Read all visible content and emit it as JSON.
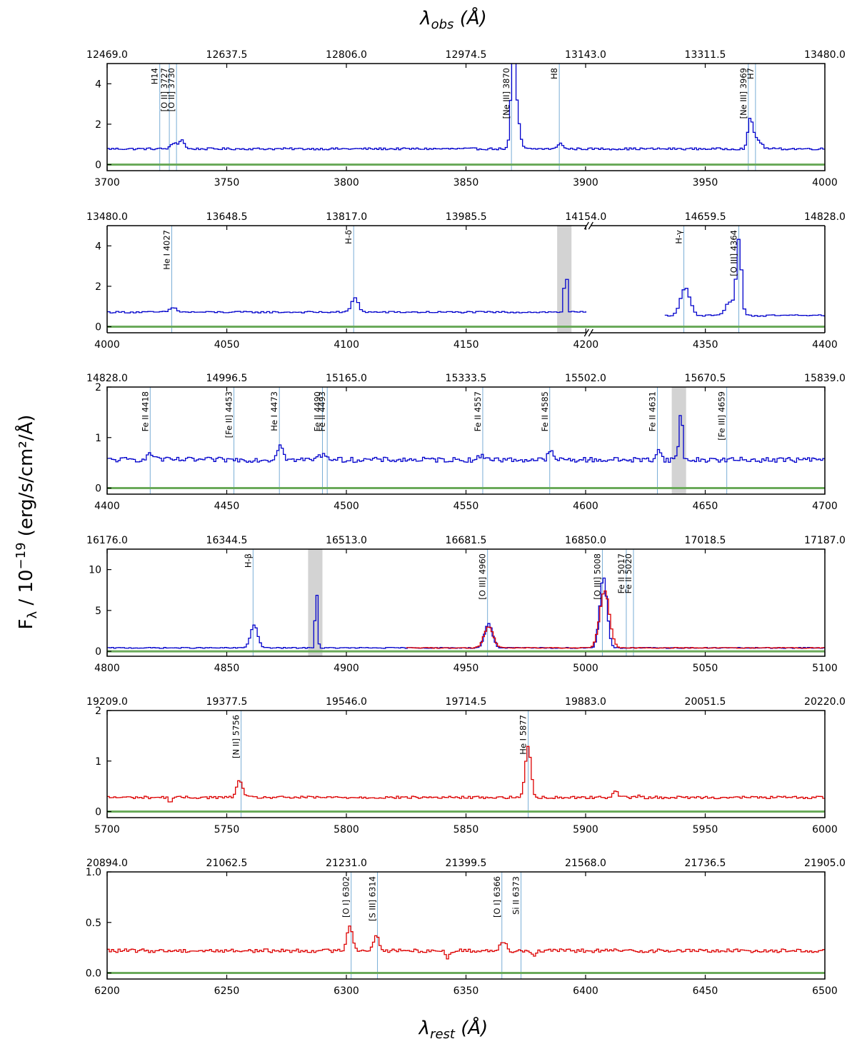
{
  "figure": {
    "top_xlabel": "λ_obs (Å)",
    "bottom_xlabel": "λ_rest (Å)",
    "ylabel": "F_λ / 10^−19 (erg/s/cm²/Å)",
    "colors": {
      "nirspec_g235": "#0000cc",
      "nirspec_g395": "#dd0000",
      "error": "#6aaa5a",
      "line_marker": "#7aaed6",
      "masked": "#d3d3d3"
    }
  },
  "chart_data": [
    {
      "type": "line",
      "xlim": [
        3700,
        4000
      ],
      "ylim": [
        -0.3,
        5.0
      ],
      "yticks": [
        0,
        2,
        4
      ],
      "xticks": [
        3700,
        3750,
        3800,
        3850,
        3900,
        3950,
        4000
      ],
      "top_ticks": [
        "12469.0",
        "12637.5",
        "12806.0",
        "12974.5",
        "13143.0",
        "13311.5",
        "13480.0"
      ],
      "lines": [
        {
          "label": "H14",
          "x": 3722
        },
        {
          "label": "[O II] 3727",
          "x": 3726
        },
        {
          "label": "[O II] 3730",
          "x": 3729
        },
        {
          "label": "[Ne III] 3870",
          "x": 3869
        },
        {
          "label": "H8",
          "x": 3889
        },
        {
          "label": "[Ne III] 3969",
          "x": 3968
        },
        {
          "label": "H7",
          "x": 3971
        }
      ],
      "masked": [],
      "series": [
        {
          "name": "",
          "color": "blue",
          "x_range": [
            3700,
            4000
          ],
          "continuum": 0.78,
          "noise": 0.05,
          "peaks": [
            [
              3728,
              0.3,
              1.5
            ],
            [
              3731,
              0.42,
              0.9
            ],
            [
              3869.2,
              4.2,
              0.9
            ],
            [
              3870.8,
              1.7,
              1.2
            ],
            [
              3889,
              0.32,
              0.9
            ],
            [
              3968.4,
              1.35,
              1.0
            ],
            [
              3971,
              0.5,
              1.8
            ]
          ]
        }
      ],
      "error": {
        "x_range": [
          3700,
          4000
        ],
        "value": 0.0
      }
    },
    {
      "type": "line",
      "xlim": [
        4000,
        4400
      ],
      "ylim": [
        -0.3,
        5.0
      ],
      "yticks": [
        0,
        2,
        4
      ],
      "xticks": [
        4000,
        4050,
        4100,
        4150,
        4200,
        4350,
        4400
      ],
      "xtick_pos": [
        4000,
        4050,
        4100,
        4150,
        4200,
        4350,
        4400
      ],
      "top_ticks": [
        "13480.0",
        "13648.5",
        "13817.0",
        "13985.5",
        "14154.0",
        "14659.5",
        "14828.0"
      ],
      "break_at": 4200,
      "lines": [
        {
          "label": "He I 4027",
          "x": 4027
        },
        {
          "label": "H-δ",
          "x": 4103
        },
        {
          "label": "H-γ",
          "x": 4341
        },
        {
          "label": "[O III] 4364",
          "x": 4364
        }
      ],
      "masked": [
        [
          4188,
          4194
        ]
      ],
      "series": [
        {
          "name": "",
          "color": "blue",
          "x_range": [
            4000,
            4200
          ],
          "continuum": 0.72,
          "noise": 0.04,
          "peaks": [
            [
              4027,
              0.22,
              1.5
            ],
            [
              4103,
              0.72,
              1.4
            ],
            [
              4191,
              2.35,
              0.6
            ]
          ]
        },
        {
          "name": "",
          "color": "blue",
          "x_range": [
            4333,
            4400
          ],
          "continuum": 0.55,
          "noise": 0.04,
          "peaks": [
            [
              4341,
              1.35,
              2.0
            ],
            [
              4363.5,
              3.7,
              1.0
            ],
            [
              4360,
              0.7,
              2.0
            ]
          ]
        }
      ],
      "error": {
        "x_range": [
          4000,
          4400
        ],
        "value": 0.0
      }
    },
    {
      "type": "line",
      "xlim": [
        4400,
        4700
      ],
      "ylim": [
        -0.12,
        2.0
      ],
      "yticks": [
        0,
        1,
        2
      ],
      "xticks": [
        4400,
        4450,
        4500,
        4550,
        4600,
        4650,
        4700
      ],
      "top_ticks": [
        "14828.0",
        "14996.5",
        "15165.0",
        "15333.5",
        "15502.0",
        "15670.5",
        "15839.0"
      ],
      "lines": [
        {
          "label": "Fe II 4418",
          "x": 4418
        },
        {
          "label": "[Fe II] 4453",
          "x": 4453
        },
        {
          "label": "He I 4473",
          "x": 4472
        },
        {
          "label": "Fe II 4490",
          "x": 4490
        },
        {
          "label": "Fe II 4493",
          "x": 4492
        },
        {
          "label": "Fe II 4557",
          "x": 4557
        },
        {
          "label": "Fe II 4585",
          "x": 4585
        },
        {
          "label": "Fe II 4631",
          "x": 4630
        },
        {
          "label": "[Fe III] 4659",
          "x": 4659
        }
      ],
      "masked": [
        [
          4636,
          4642
        ]
      ],
      "series": [
        {
          "name": "",
          "color": "blue",
          "x_range": [
            4400,
            4700
          ],
          "continuum": 0.56,
          "noise": 0.05,
          "peaks": [
            [
              4418,
              0.1,
              2.0
            ],
            [
              4472,
              0.32,
              1.2
            ],
            [
              4490,
              0.1,
              2.0
            ],
            [
              4557,
              0.07,
              2.0
            ],
            [
              4585,
              0.15,
              1.2
            ],
            [
              4630,
              0.2,
              1.0
            ],
            [
              4638,
              0.3,
              0.4
            ],
            [
              4639.5,
              1.5,
              0.4
            ]
          ]
        }
      ],
      "error": {
        "x_range": [
          4400,
          4700
        ],
        "value": 0.0
      }
    },
    {
      "type": "line",
      "xlim": [
        4800,
        5100
      ],
      "ylim": [
        -0.6,
        12.5
      ],
      "yticks": [
        0,
        5,
        10
      ],
      "xticks": [
        4800,
        4850,
        4900,
        4950,
        5000,
        5050,
        5100
      ],
      "top_ticks": [
        "16176.0",
        "16344.5",
        "16513.0",
        "16681.5",
        "16850.0",
        "17018.5",
        "17187.0"
      ],
      "lines": [
        {
          "label": "H-β",
          "x": 4861
        },
        {
          "label": "[O III] 4960",
          "x": 4959
        },
        {
          "label": "[O III] 5008",
          "x": 5007
        },
        {
          "label": "Fe II 5017",
          "x": 5017
        },
        {
          "label": "Fe II 5020",
          "x": 5020
        }
      ],
      "masked": [
        [
          4884,
          4890
        ]
      ],
      "series": [
        {
          "name": "",
          "color": "blue",
          "x_range": [
            4800,
            5100
          ],
          "continuum": 0.42,
          "noise": 0.06,
          "peaks": [
            [
              4861,
              2.8,
              1.5
            ],
            [
              4887,
              7.5,
              0.5
            ],
            [
              4959,
              3.0,
              1.6
            ],
            [
              5007,
              8.7,
              1.5
            ]
          ]
        },
        {
          "name": "",
          "color": "red",
          "x_range": [
            4925,
            5100
          ],
          "continuum": 0.42,
          "noise": 0.05,
          "peaks": [
            [
              4959,
              2.6,
              1.9
            ],
            [
              5007.5,
              7.0,
              2.0
            ]
          ]
        }
      ],
      "error": {
        "x_range": [
          4800,
          5100
        ],
        "value": 0.0
      }
    },
    {
      "type": "line",
      "xlim": [
        5700,
        6000
      ],
      "ylim": [
        -0.12,
        2.0
      ],
      "yticks": [
        0,
        1,
        2
      ],
      "xticks": [
        5700,
        5750,
        5800,
        5850,
        5900,
        5950,
        6000
      ],
      "top_ticks": [
        "19209.0",
        "19377.5",
        "19546.0",
        "19714.5",
        "19883.0",
        "20051.5",
        "20220.0"
      ],
      "lines": [
        {
          "label": "[N II] 5756",
          "x": 5756
        },
        {
          "label": "He I 5877",
          "x": 5876
        }
      ],
      "masked": [],
      "series": [
        {
          "name": "",
          "color": "red",
          "x_range": [
            5700,
            6000
          ],
          "continuum": 0.28,
          "noise": 0.025,
          "peaks": [
            [
              5755,
              0.35,
              1.2
            ],
            [
              5726,
              -0.1,
              0.6
            ],
            [
              5875.5,
              1.0,
              1.2
            ],
            [
              5912,
              0.12,
              1.2
            ],
            [
              5922,
              0.06,
              0.5
            ]
          ]
        }
      ],
      "error": {
        "x_range": [
          5700,
          6000
        ],
        "value": 0.0
      }
    },
    {
      "type": "line",
      "xlim": [
        6200,
        6500
      ],
      "ylim": [
        -0.06,
        1.0
      ],
      "yticks": [
        0.0,
        0.5,
        1.0
      ],
      "xticks": [
        6200,
        6250,
        6300,
        6350,
        6400,
        6450,
        6500
      ],
      "top_ticks": [
        "20894.0",
        "21062.5",
        "21231.0",
        "21399.5",
        "21568.0",
        "21736.5",
        "21905.0"
      ],
      "lines": [
        {
          "label": "[O I] 6302",
          "x": 6302
        },
        {
          "label": "[S III] 6314",
          "x": 6313
        },
        {
          "label": "[O I] 6366",
          "x": 6365
        },
        {
          "label": "Si II 6373",
          "x": 6373
        }
      ],
      "masked": [],
      "series": [
        {
          "name": "",
          "color": "red",
          "x_range": [
            6200,
            6500
          ],
          "continuum": 0.22,
          "noise": 0.018,
          "peaks": [
            [
              6301,
              0.25,
              1.2
            ],
            [
              6312,
              0.14,
              1.3
            ],
            [
              6342,
              -0.07,
              0.8
            ],
            [
              6365,
              0.1,
              1.3
            ],
            [
              6378,
              -0.05,
              0.8
            ]
          ]
        }
      ],
      "error": {
        "x_range": [
          6200,
          6500
        ],
        "value": 0.0
      }
    }
  ]
}
